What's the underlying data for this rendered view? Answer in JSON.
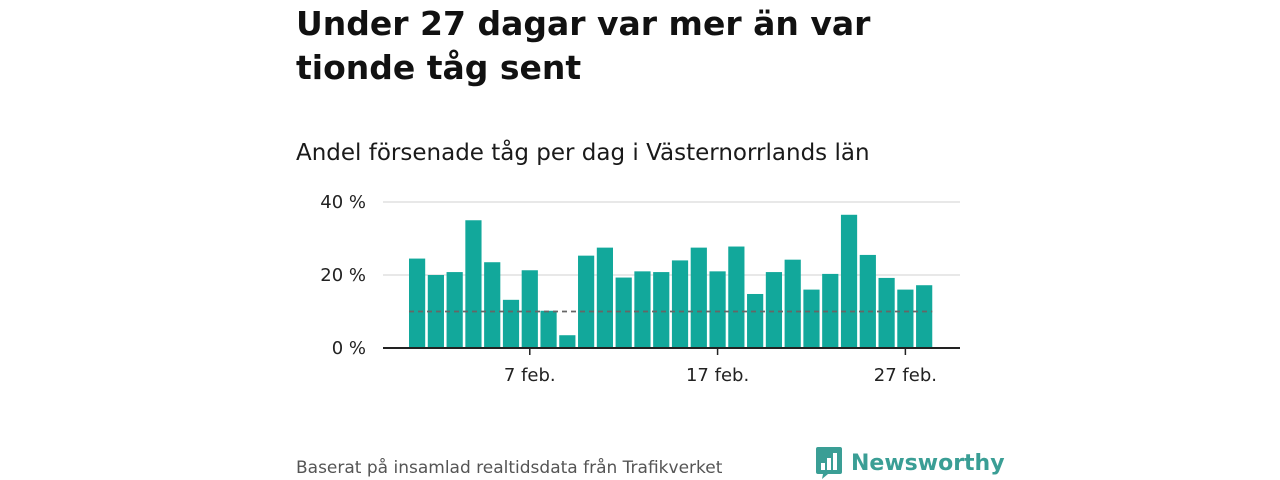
{
  "headline": "Under 27 dagar var mer än var tionde tåg sent",
  "subtitle": "Andel försenade tåg per dag i Västernorrlands län",
  "source_text": "Baserat på insamlad realtidsdata från Trafikverket",
  "brand": {
    "name": "Newsworthy",
    "icon": "newsworthy-logo-icon",
    "color": "#3a9e95"
  },
  "colors": {
    "bar": "#12a89b",
    "reference_line": "#666666",
    "grid": "#d9d9d9",
    "axis": "#222222"
  },
  "chart_data": {
    "type": "bar",
    "grid": true,
    "x_ticks": [
      "7 feb.",
      "17 feb.",
      "27 feb."
    ],
    "x_tick_day_index": [
      6,
      16,
      26
    ],
    "y_ticks": [
      "0 %",
      "20 %",
      "40 %"
    ],
    "y_tick_values": [
      0,
      20,
      40
    ],
    "ylim": [
      0,
      40
    ],
    "unit": "%",
    "reference_line": {
      "value": 10,
      "style": "dashed"
    },
    "days": [
      1,
      2,
      3,
      4,
      5,
      6,
      7,
      8,
      9,
      10,
      11,
      12,
      13,
      14,
      15,
      16,
      17,
      18,
      19,
      20,
      21,
      22,
      23,
      24,
      25,
      26,
      27,
      28
    ],
    "values": [
      24.5,
      20,
      20.8,
      35,
      23.5,
      13.2,
      21.3,
      10.2,
      3.5,
      25.3,
      27.5,
      19.3,
      21,
      20.8,
      24,
      27.5,
      21,
      27.8,
      14.8,
      20.8,
      24.2,
      16,
      20.3,
      36.5,
      25.5,
      19.2,
      16,
      17.2
    ]
  }
}
